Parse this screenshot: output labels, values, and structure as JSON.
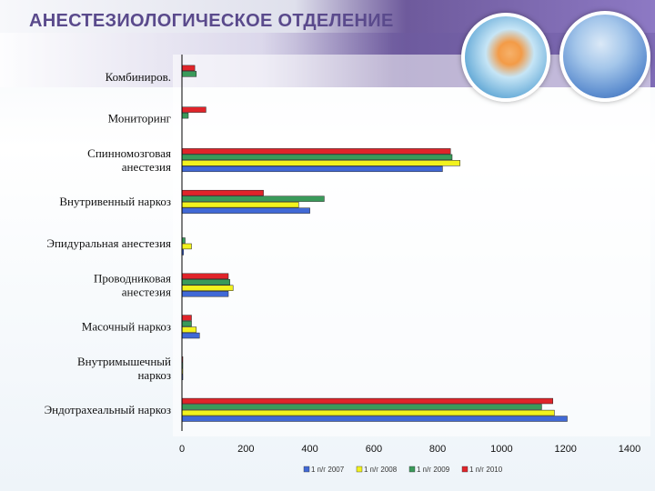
{
  "slide": {
    "title": "АНЕСТЕЗИОЛОГИЧЕСКОЕ ОТДЕЛЕНИЕ"
  },
  "chart_data": {
    "type": "bar",
    "orientation": "horizontal",
    "categories": [
      [
        "Комбиниров."
      ],
      [
        "Мониторинг"
      ],
      [
        "Спинномозговая",
        "анестезия"
      ],
      [
        "Внутривенный наркоз"
      ],
      [
        "Эпидуральная анестезия"
      ],
      [
        "Проводниковая",
        "анестезия"
      ],
      [
        "Масочный наркоз"
      ],
      [
        "Внутримышечный",
        "наркоз"
      ],
      [
        "Эндотрахеальный наркоз"
      ]
    ],
    "series": [
      {
        "name": "1 п/г 2007",
        "color": "#4169d6",
        "values": [
          0,
          0,
          815,
          400,
          5,
          145,
          55,
          2,
          1205
        ]
      },
      {
        "name": "1 п/г 2008",
        "color": "#f2f21e",
        "values": [
          0,
          0,
          870,
          365,
          30,
          160,
          45,
          1,
          1165
        ]
      },
      {
        "name": "1 п/г 2009",
        "color": "#3a9a5a",
        "values": [
          45,
          20,
          845,
          445,
          10,
          150,
          30,
          1,
          1125
        ]
      },
      {
        "name": "1 п/г 2010",
        "color": "#e0242a",
        "values": [
          40,
          75,
          840,
          255,
          0,
          145,
          30,
          1,
          1160
        ]
      }
    ],
    "xlim": [
      0,
      1400
    ],
    "xticks": [
      0,
      200,
      400,
      600,
      800,
      1000,
      1200,
      1400
    ],
    "grid": false,
    "legend_position": "bottom"
  }
}
